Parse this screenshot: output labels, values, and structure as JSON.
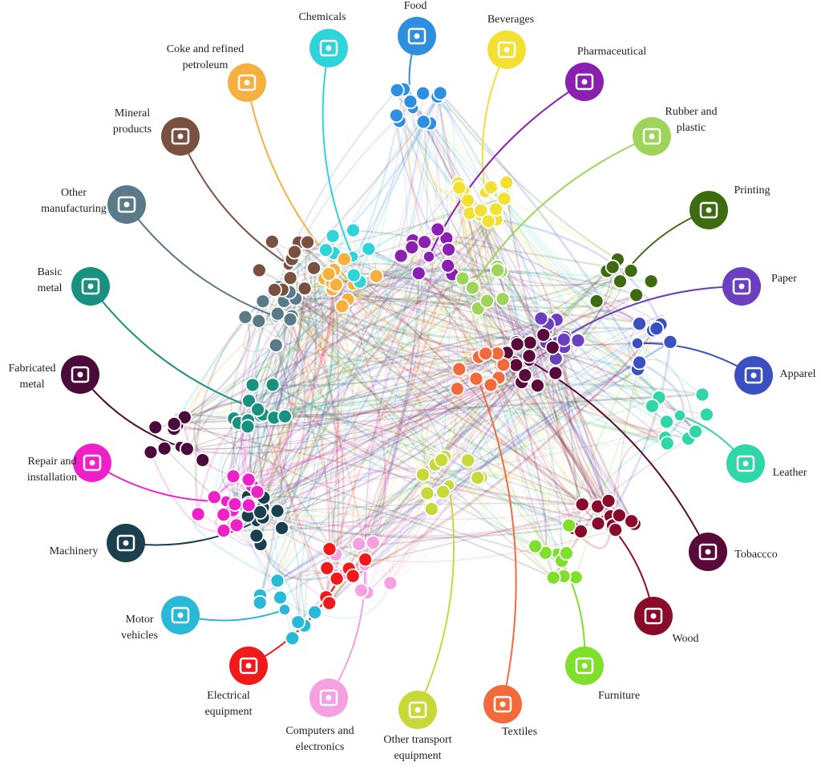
{
  "nodes": [
    {
      "label": [
        "Chemicals"
      ],
      "color": "#2fd4da"
    },
    {
      "label": [
        "Food"
      ],
      "color": "#2e8ee0"
    },
    {
      "label": [
        "Beverages"
      ],
      "color": "#f2e032"
    },
    {
      "label": [
        "Pharmaceutical"
      ],
      "color": "#8a1fb0"
    },
    {
      "label": [
        "Rubber and",
        "plastic"
      ],
      "color": "#9ed45a"
    },
    {
      "label": [
        "Printing"
      ],
      "color": "#3f6b10"
    },
    {
      "label": [
        "Paper"
      ],
      "color": "#6b3fbf"
    },
    {
      "label": [
        "Apparel"
      ],
      "color": "#3a4fc0"
    },
    {
      "label": [
        "Leather"
      ],
      "color": "#2ed6a8"
    },
    {
      "label": [
        "Tobaccco"
      ],
      "color": "#5a0a3a"
    },
    {
      "label": [
        "Wood"
      ],
      "color": "#8a0a2a"
    },
    {
      "label": [
        "Furniture"
      ],
      "color": "#7ee02a"
    },
    {
      "label": [
        "Textiles"
      ],
      "color": "#f26a3c"
    },
    {
      "label": [
        "Other transport",
        "equipment"
      ],
      "color": "#c8d838"
    },
    {
      "label": [
        "Computers and",
        "electronics"
      ],
      "color": "#f5a0e0"
    },
    {
      "label": [
        "Electrical",
        "equipment"
      ],
      "color": "#f01a1a"
    },
    {
      "label": [
        "Motor",
        "vehicles"
      ],
      "color": "#28b8d8"
    },
    {
      "label": [
        "Machinery"
      ],
      "color": "#1a4050"
    },
    {
      "label": [
        "Repair and",
        "installation"
      ],
      "color": "#f020c8"
    },
    {
      "label": [
        "Fabricated",
        "metal"
      ],
      "color": "#4a0a3a"
    },
    {
      "label": [
        "Basic",
        "metal"
      ],
      "color": "#1a9080"
    },
    {
      "label": [
        "Other",
        "manufacturing"
      ],
      "color": "#5a7a8a"
    },
    {
      "label": [
        "Mineral",
        "products"
      ],
      "color": "#7a5040"
    },
    {
      "label": [
        "Coke and refined",
        "petroleum"
      ],
      "color": "#f5b040"
    }
  ]
}
